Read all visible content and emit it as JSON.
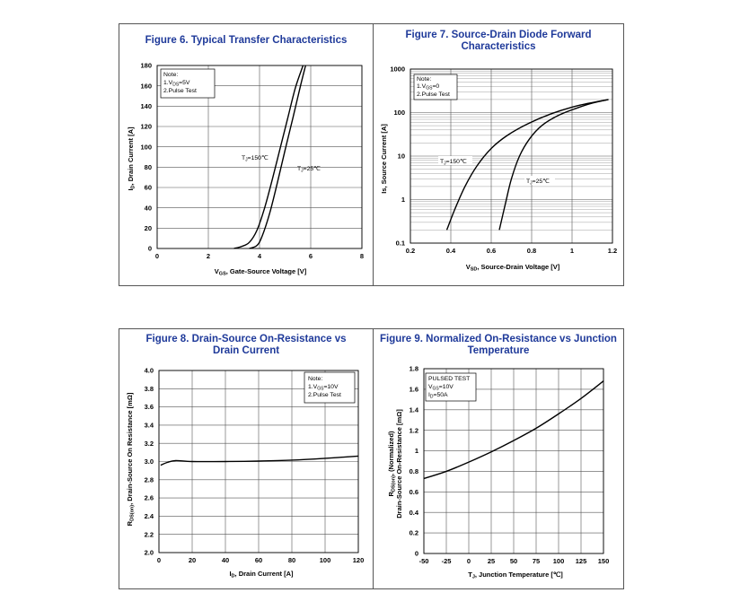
{
  "panels": [
    {
      "title": "Figure 6. Typical Transfer Characteristics",
      "chart_data": {
        "type": "line",
        "title": "Figure 6. Typical Transfer Characteristics",
        "xlabel": "VGS, Gate-Source Voltage [V]",
        "ylabel": "ID, Drain Current [A]",
        "xlim": [
          0,
          8
        ],
        "ylim": [
          0,
          180
        ],
        "x_ticks": [
          "0",
          "2",
          "4",
          "6",
          "8"
        ],
        "y_ticks": [
          "0",
          "20",
          "40",
          "60",
          "80",
          "100",
          "120",
          "140",
          "160",
          "180"
        ],
        "note": [
          "Note:",
          "1.VDS=5V",
          "2.Pulse Test"
        ],
        "series": [
          {
            "name": "TJ=150°C",
            "x": [
              3.0,
              3.3,
              3.6,
              3.9,
              4.2,
              4.5,
              4.8,
              5.1,
              5.4,
              5.7
            ],
            "y": [
              0,
              2,
              6,
              18,
              40,
              68,
              98,
              128,
              158,
              180
            ]
          },
          {
            "name": "TJ=25°C",
            "x": [
              3.6,
              3.9,
              4.1,
              4.4,
              4.7,
              5.0,
              5.3,
              5.6,
              5.8
            ],
            "y": [
              0,
              3,
              12,
              35,
              65,
              97,
              128,
              160,
              180
            ]
          }
        ]
      }
    },
    {
      "title": "Figure 7. Source-Drain Diode Forward Characteristics",
      "chart_data": {
        "type": "line",
        "title": "Figure 7. Source-Drain Diode Forward Characteristics",
        "xlabel": "VSD, Source-Drain Voltage [V]",
        "ylabel": "Is, Source Current [A]",
        "xlim": [
          0.2,
          1.2
        ],
        "ylim": [
          0.1,
          1000
        ],
        "yscale": "log",
        "x_ticks": [
          "0.2",
          "0.4",
          "0.6",
          "0.8",
          "1",
          "1.2"
        ],
        "y_ticks": [
          "0.1",
          "1",
          "10",
          "100",
          "1000"
        ],
        "note": [
          "Note:",
          "1.VGS=0",
          "2.Pulse Test"
        ],
        "series": [
          {
            "name": "TJ=150°C",
            "x": [
              0.38,
              0.42,
              0.47,
              0.53,
              0.6,
              0.68,
              0.78,
              0.9,
              1.03,
              1.18
            ],
            "y": [
              0.2,
              0.6,
              2,
              6,
              15,
              30,
              55,
              95,
              145,
              200
            ]
          },
          {
            "name": "TJ=25°C",
            "x": [
              0.64,
              0.67,
              0.7,
              0.74,
              0.79,
              0.85,
              0.93,
              1.02,
              1.1,
              1.18
            ],
            "y": [
              0.2,
              0.8,
              3,
              10,
              25,
              50,
              85,
              125,
              165,
              200
            ]
          }
        ]
      }
    },
    {
      "title": "Figure 8. Drain-Source On-Resistance vs Drain Current",
      "chart_data": {
        "type": "line",
        "title": "Figure 8. Drain-Source On-Resistance vs Drain Current",
        "xlabel": "ID, Drain Current [A]",
        "ylabel": "RDS(on), Drain-Source On Resistance [mΩ]",
        "xlim": [
          0,
          120
        ],
        "ylim": [
          2.0,
          4.0
        ],
        "x_ticks": [
          "0",
          "20",
          "40",
          "60",
          "80",
          "100",
          "120"
        ],
        "y_ticks": [
          "2.0",
          "2.2",
          "2.4",
          "2.6",
          "2.8",
          "3.0",
          "3.2",
          "3.4",
          "3.6",
          "3.8",
          "4.0"
        ],
        "note": [
          "Note:",
          "1.VGS=10V",
          "2.Pulse Test"
        ],
        "series": [
          {
            "name": "RDS(on)",
            "x": [
              1,
              5,
              10,
              20,
              40,
              60,
              80,
              100,
              120
            ],
            "y": [
              2.96,
              2.99,
              3.01,
              3.0,
              3.0,
              3.005,
              3.015,
              3.035,
              3.06
            ]
          }
        ]
      }
    },
    {
      "title": "Figure 9. Normalized On-Resistance vs Junction Temperature",
      "chart_data": {
        "type": "line",
        "title": "Figure 9. Normalized On-Resistance vs Junction Temperature",
        "xlabel": "TJ, Junction Temperature [°C]",
        "ylabel": "RDS(on), (Normalized) Drain-Source On-Resistance [mΩ]",
        "xlim": [
          -50,
          150
        ],
        "ylim": [
          0,
          1.8
        ],
        "x_ticks": [
          "-50",
          "-25",
          "0",
          "25",
          "50",
          "75",
          "100",
          "125",
          "150"
        ],
        "y_ticks": [
          "0",
          "0.2",
          "0.4",
          "0.6",
          "0.8",
          "1",
          "1.2",
          "1.4",
          "1.6",
          "1.8"
        ],
        "note": [
          "PULSED TEST",
          "VGS=10V",
          "ID=50A"
        ],
        "series": [
          {
            "name": "Normalized RDS(on)",
            "x": [
              -50,
              -25,
              0,
              25,
              50,
              75,
              100,
              125,
              150
            ],
            "y": [
              0.73,
              0.8,
              0.89,
              0.99,
              1.1,
              1.22,
              1.36,
              1.51,
              1.68
            ]
          }
        ]
      }
    }
  ],
  "labels": {
    "fig6": {
      "x_label_main": "V",
      "x_label_sub": "GS",
      "x_label_rest": ", Gate-Source Voltage [V]",
      "y_label_main": "I",
      "y_label_sub": "D",
      "y_label_rest": ", Drain Current [A]",
      "note_l1": "Note:",
      "note_l2_main": "1.V",
      "note_l2_sub": "DS",
      "note_l2_rest": "=5V",
      "note_l3": "2.Pulse Test",
      "curve1_main": "T",
      "curve1_sub": "J",
      "curve1_rest": "=150℃",
      "curve2_main": "T",
      "curve2_sub": "J",
      "curve2_rest": "=25℃"
    },
    "fig7": {
      "x_label_main": "V",
      "x_label_sub": "SD",
      "x_label_rest": ", Source-Drain Voltage [V]",
      "y_label": "Is, Source Current [A]",
      "note_l1": "Note:",
      "note_l2_main": "1.V",
      "note_l2_sub": "GS",
      "note_l2_rest": "=0",
      "note_l3": "2.Pulse Test",
      "curve1_main": "T",
      "curve1_sub": "J",
      "curve1_rest": "=150℃",
      "curve2_main": "T",
      "curve2_sub": "J",
      "curve2_rest": "=25℃"
    },
    "fig8": {
      "x_label_main": "I",
      "x_label_sub": "D",
      "x_label_rest": ", Drain Current [A]",
      "y_label_main": "R",
      "y_label_sub": "DS(on)",
      "y_label_rest": ", Drain-Source On Resistance [mΩ]",
      "note_l1": "Note:",
      "note_l2_main": "1.V",
      "note_l2_sub": "GS",
      "note_l2_rest": "=10V",
      "note_l3": "2.Pulse Test"
    },
    "fig9": {
      "x_label_main": "T",
      "x_label_sub": "J",
      "x_label_rest": ", Junction Temperature [℃]",
      "y_label1_main": "R",
      "y_label1_sub": "DS(on)",
      "y_label1_rest": ", (Normalized)",
      "y_label2": "Drain-Source On-Resistance [mΩ]",
      "note_l1": "PULSED TEST",
      "note_l2_main": "V",
      "note_l2_sub": "GS",
      "note_l2_rest": "=10V",
      "note_l3_main": "I",
      "note_l3_sub": "D",
      "note_l3_rest": "=50A"
    }
  }
}
